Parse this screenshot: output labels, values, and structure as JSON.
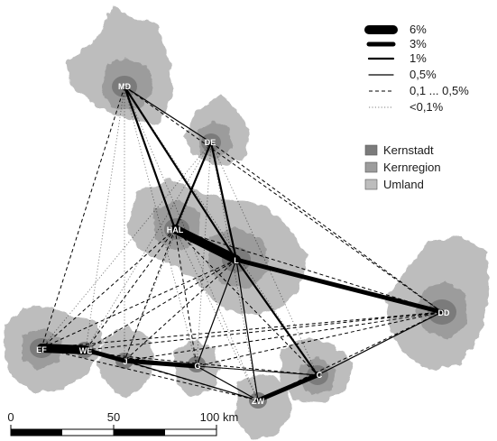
{
  "map": {
    "colors": {
      "kernstadt": "#7b7b7b",
      "kernregion": "#9c9c9c",
      "umland": "#bdbdbd",
      "flow": "#000000",
      "background": "#ffffff"
    },
    "cities": [
      {
        "id": "MD",
        "label": "MD"
      },
      {
        "id": "DE",
        "label": "DE"
      },
      {
        "id": "HAL",
        "label": "HAL"
      },
      {
        "id": "L",
        "label": "L"
      },
      {
        "id": "DD",
        "label": "DD"
      },
      {
        "id": "EF",
        "label": "EF"
      },
      {
        "id": "WE",
        "label": "WE"
      },
      {
        "id": "J",
        "label": "J"
      },
      {
        "id": "G",
        "label": "G"
      },
      {
        "id": "C",
        "label": "C"
      },
      {
        "id": "ZW",
        "label": "ZW"
      }
    ],
    "flow_legend": [
      {
        "label": "6%",
        "class": "c6"
      },
      {
        "label": "3%",
        "class": "c3"
      },
      {
        "label": "1%",
        "class": "c1"
      },
      {
        "label": "0,5%",
        "class": "c05"
      },
      {
        "label": "0,1 ... 0,5%",
        "class": "cdash"
      },
      {
        "label": "<0,1%",
        "class": "cdot"
      }
    ],
    "area_legend": [
      {
        "label": "Kernstadt",
        "color": "#7b7b7b"
      },
      {
        "label": "Kernregion",
        "color": "#9c9c9c"
      },
      {
        "label": "Umland",
        "color": "#bdbdbd"
      }
    ],
    "flows": [
      {
        "from": "HAL",
        "to": "L",
        "class": "c6"
      },
      {
        "from": "EF",
        "to": "WE",
        "class": "c6"
      },
      {
        "from": "WE",
        "to": "J",
        "class": "c3"
      },
      {
        "from": "L",
        "to": "DD",
        "class": "c3"
      },
      {
        "from": "J",
        "to": "G",
        "class": "c3"
      },
      {
        "from": "C",
        "to": "ZW",
        "class": "c3"
      },
      {
        "from": "MD",
        "to": "HAL",
        "class": "c1"
      },
      {
        "from": "MD",
        "to": "L",
        "class": "c1"
      },
      {
        "from": "HAL",
        "to": "DE",
        "class": "c1"
      },
      {
        "from": "L",
        "to": "DE",
        "class": "c1"
      },
      {
        "from": "L",
        "to": "C",
        "class": "c1"
      },
      {
        "from": "MD",
        "to": "DE",
        "class": "c05"
      },
      {
        "from": "L",
        "to": "ZW",
        "class": "c05"
      },
      {
        "from": "L",
        "to": "G",
        "class": "c05"
      },
      {
        "from": "G",
        "to": "ZW",
        "class": "c05"
      },
      {
        "from": "DD",
        "to": "C",
        "class": "c05"
      },
      {
        "from": "J",
        "to": "ZW",
        "class": "c05"
      },
      {
        "from": "MD",
        "to": "DD",
        "class": "cdash"
      },
      {
        "from": "DE",
        "to": "DD",
        "class": "cdash"
      },
      {
        "from": "HAL",
        "to": "DD",
        "class": "cdash"
      },
      {
        "from": "MD",
        "to": "EF",
        "class": "cdash"
      },
      {
        "from": "HAL",
        "to": "EF",
        "class": "cdash"
      },
      {
        "from": "HAL",
        "to": "J",
        "class": "cdash"
      },
      {
        "from": "HAL",
        "to": "WE",
        "class": "cdash"
      },
      {
        "from": "HAL",
        "to": "G",
        "class": "cdash"
      },
      {
        "from": "HAL",
        "to": "C",
        "class": "cdash"
      },
      {
        "from": "L",
        "to": "EF",
        "class": "cdash"
      },
      {
        "from": "L",
        "to": "WE",
        "class": "cdash"
      },
      {
        "from": "L",
        "to": "J",
        "class": "cdash"
      },
      {
        "from": "EF",
        "to": "DD",
        "class": "cdash"
      },
      {
        "from": "EF",
        "to": "G",
        "class": "cdash"
      },
      {
        "from": "EF",
        "to": "C",
        "class": "cdash"
      },
      {
        "from": "EF",
        "to": "ZW",
        "class": "cdash"
      },
      {
        "from": "WE",
        "to": "DD",
        "class": "cdash"
      },
      {
        "from": "WE",
        "to": "ZW",
        "class": "cdash"
      },
      {
        "from": "J",
        "to": "DD",
        "class": "cdash"
      },
      {
        "from": "J",
        "to": "C",
        "class": "cdash"
      },
      {
        "from": "G",
        "to": "DD",
        "class": "cdash"
      },
      {
        "from": "G",
        "to": "C",
        "class": "cdash"
      },
      {
        "from": "ZW",
        "to": "DD",
        "class": "cdash"
      },
      {
        "from": "MD",
        "to": "WE",
        "class": "cdot"
      },
      {
        "from": "MD",
        "to": "J",
        "class": "cdot"
      },
      {
        "from": "MD",
        "to": "G",
        "class": "cdot"
      },
      {
        "from": "MD",
        "to": "C",
        "class": "cdot"
      },
      {
        "from": "MD",
        "to": "ZW",
        "class": "cdot"
      },
      {
        "from": "DE",
        "to": "EF",
        "class": "cdot"
      },
      {
        "from": "DE",
        "to": "WE",
        "class": "cdot"
      },
      {
        "from": "DE",
        "to": "J",
        "class": "cdot"
      },
      {
        "from": "DE",
        "to": "G",
        "class": "cdot"
      },
      {
        "from": "DE",
        "to": "C",
        "class": "cdot"
      },
      {
        "from": "DE",
        "to": "ZW",
        "class": "cdot"
      },
      {
        "from": "HAL",
        "to": "ZW",
        "class": "cdot"
      }
    ],
    "scale": {
      "labels": [
        "0",
        "50",
        "100 km"
      ]
    }
  }
}
